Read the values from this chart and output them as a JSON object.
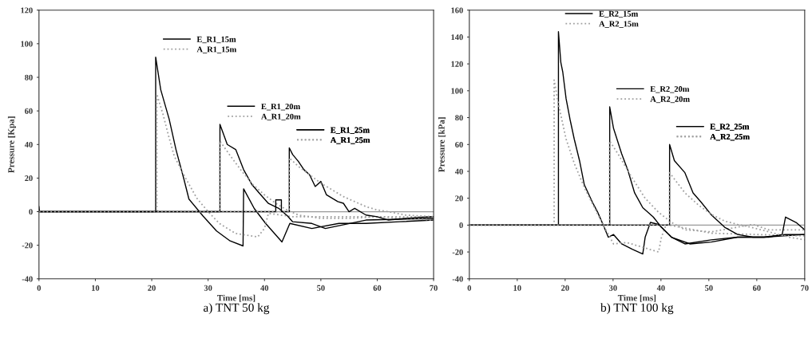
{
  "chart_data": [
    {
      "type": "line",
      "title": "a) TNT 50 kg",
      "xlabel": "Time [ms]",
      "ylabel": "Pressure [Kpa]",
      "xlim": [
        0,
        70
      ],
      "xticks": [
        0,
        10,
        20,
        30,
        40,
        50,
        60,
        70
      ],
      "ylim": [
        -40,
        120
      ],
      "yticks": [
        -40,
        -20,
        0,
        20,
        40,
        60,
        80,
        100,
        120
      ],
      "grid": false,
      "ref_lines": [
        {
          "axis": "y",
          "value": 0,
          "color": "#999999"
        }
      ],
      "legend": "top",
      "series": [
        {
          "name": "E_R1_15m",
          "color": "#000000",
          "line_style": "solid",
          "x": [
            0,
            0.1,
            20.7,
            20.7,
            21.6,
            23.1,
            24.3,
            25.7,
            26.6,
            29.1,
            31.5,
            33.9,
            36.2,
            36.3,
            38.2,
            40.2,
            43.1,
            44.5,
            48.4,
            53.2,
            58,
            64,
            70
          ],
          "values": [
            3,
            0,
            0,
            92,
            72.6,
            55,
            37,
            19.5,
            7.5,
            -2.6,
            -11.5,
            -17.4,
            -20.4,
            13.6,
            1.8,
            -7,
            -18,
            -7,
            -10,
            -7,
            -7,
            -6,
            -5
          ]
        },
        {
          "name": "A_R1_15m",
          "color": "#a0a0a0",
          "line_style": "dotted",
          "x": [
            0,
            20.9,
            20.9,
            22,
            23,
            24,
            26,
            28,
            30,
            32,
            34.9,
            38.8,
            40,
            40.7,
            45,
            50,
            60,
            70
          ],
          "values": [
            0,
            0,
            70,
            58,
            45,
            33,
            20,
            8,
            0,
            -7,
            -13,
            -15,
            -10,
            -1,
            -3,
            -3,
            -3,
            -3
          ]
        },
        {
          "name": "E_R1_20m",
          "color": "#000000",
          "line_style": "solid",
          "x": [
            0,
            32.1,
            32.1,
            33.4,
            34.9,
            36.3,
            37.8,
            39.2,
            40.7,
            42.6,
            44.1,
            45,
            48.4,
            50.8,
            58,
            70
          ],
          "values": [
            0,
            0,
            52,
            40,
            37,
            25,
            16,
            10.6,
            4.9,
            1.8,
            -2.6,
            -6,
            -7,
            -10,
            -5,
            -4
          ]
        },
        {
          "name": "A_R1_20m",
          "color": "#a0a0a0",
          "line_style": "dotted",
          "x": [
            0,
            32.1,
            32.1,
            34,
            36,
            38,
            40,
            42,
            44,
            46,
            50,
            55,
            60,
            70
          ],
          "values": [
            0,
            0,
            42,
            33,
            24,
            16,
            10,
            5,
            1,
            -2,
            -4,
            -4,
            -3,
            -5
          ]
        },
        {
          "name": "E_R1_25m",
          "color": "#000000",
          "line_style": "solid",
          "x": [
            0,
            42,
            42,
            43,
            43,
            44.4,
            44.4,
            45,
            46,
            47,
            48,
            49,
            50,
            51,
            52,
            53,
            54,
            55,
            56,
            58,
            60,
            62,
            65,
            70
          ],
          "values": [
            0,
            0,
            7,
            7,
            0,
            0,
            38,
            34,
            30,
            25,
            22,
            15,
            18,
            10,
            8,
            6,
            5,
            0,
            2,
            -2,
            -3,
            -5,
            -4,
            -3
          ]
        },
        {
          "name": "A_R1_25m",
          "color": "#a0a0a0",
          "line_style": "dotted",
          "x": [
            0,
            44.4,
            44.4,
            46,
            48,
            50,
            52,
            54,
            56,
            58,
            60,
            62,
            65,
            70
          ],
          "values": [
            0,
            0,
            32,
            27,
            22,
            17,
            13,
            9,
            6,
            3,
            1,
            0,
            -2,
            -3
          ]
        }
      ]
    },
    {
      "type": "line",
      "title": "b) TNT 100 kg",
      "xlabel": "Time [ms]",
      "ylabel": "Pressure [kPa]",
      "xlim": [
        0,
        70
      ],
      "xticks": [
        0,
        10,
        20,
        30,
        40,
        50,
        60,
        70
      ],
      "ylim": [
        -40,
        160
      ],
      "yticks": [
        -40,
        -20,
        0,
        20,
        40,
        60,
        80,
        100,
        120,
        140,
        160
      ],
      "grid": false,
      "ref_lines": [
        {
          "axis": "y",
          "value": 0,
          "color": "#999999"
        }
      ],
      "legend": "top",
      "series": [
        {
          "name": "E_R2_15m",
          "color": "#000000",
          "line_style": "solid",
          "x": [
            0,
            18.6,
            18.6,
            19.1,
            19.5,
            20.2,
            21,
            21.9,
            23,
            24,
            25.7,
            26.8,
            27.9,
            29,
            30.1,
            31.8,
            34,
            36.2,
            36.7,
            37.8,
            39.5,
            42.2,
            46.1,
            50.5,
            56,
            61.5,
            70
          ],
          "values": [
            0,
            0,
            144,
            121,
            114,
            94,
            79,
            64,
            48,
            30,
            17,
            9.5,
            0.5,
            -9,
            -7,
            -14,
            -18,
            -21.5,
            -9,
            2,
            0.5,
            -9,
            -14,
            -12.6,
            -9,
            -9,
            -7
          ]
        },
        {
          "name": "A_R2_15m",
          "color": "#a0a0a0",
          "line_style": "dotted",
          "x": [
            0,
            17.7,
            17.7,
            18.6,
            20.2,
            21.9,
            24,
            26.3,
            27.9,
            30.1,
            32.9,
            39.5,
            40.1,
            41.1,
            50.5,
            60,
            70
          ],
          "values": [
            0,
            0,
            108,
            90,
            64,
            46,
            28,
            11.5,
            0.5,
            -14,
            -13,
            -20,
            -9,
            0.5,
            -6,
            -7,
            -8
          ]
        },
        {
          "name": "E_R2_20m",
          "color": "#000000",
          "line_style": "solid",
          "x": [
            0,
            29.3,
            29.3,
            30.1,
            31.8,
            33.1,
            34.5,
            36.2,
            38.4,
            40.1,
            42.2,
            45,
            50.5,
            56,
            61.5,
            65.9,
            70
          ],
          "values": [
            0,
            0,
            88,
            72,
            53,
            40.7,
            24,
            13,
            6,
            -1.6,
            -9,
            -14,
            -11,
            -9,
            -9,
            -7,
            -7
          ]
        },
        {
          "name": "A_R2_20m",
          "color": "#a0a0a0",
          "line_style": "dotted",
          "x": [
            0,
            29.3,
            29.3,
            31.2,
            34,
            36.7,
            39.5,
            42.2,
            45,
            50.5,
            56,
            59.2,
            62.5,
            70
          ],
          "values": [
            0,
            0,
            62.6,
            52,
            35,
            20,
            9.5,
            2,
            -3.5,
            -5,
            -1.5,
            0.5,
            -3.5,
            -3.5
          ]
        },
        {
          "name": "E_R2_25m",
          "color": "#000000",
          "line_style": "solid",
          "x": [
            0,
            41.8,
            41.8,
            42.8,
            45,
            46.7,
            48.4,
            50.5,
            53.3,
            56,
            59.2,
            62.5,
            65.3,
            66,
            68.2,
            70
          ],
          "values": [
            0,
            0,
            60,
            48,
            39,
            24,
            17,
            7.7,
            -1.6,
            -7,
            -9,
            -9,
            -7,
            6,
            2,
            -3.5
          ]
        },
        {
          "name": "A_R2_25m",
          "color": "#a0a0a0",
          "line_style": "dotted",
          "x": [
            0,
            41.8,
            41.8,
            45,
            47.8,
            50.5,
            53.3,
            56,
            58.7,
            62.5,
            66.8,
            70
          ],
          "values": [
            0,
            0,
            39,
            24,
            15,
            8,
            3,
            0.5,
            -1.5,
            -5,
            -9,
            -11
          ]
        }
      ]
    }
  ]
}
